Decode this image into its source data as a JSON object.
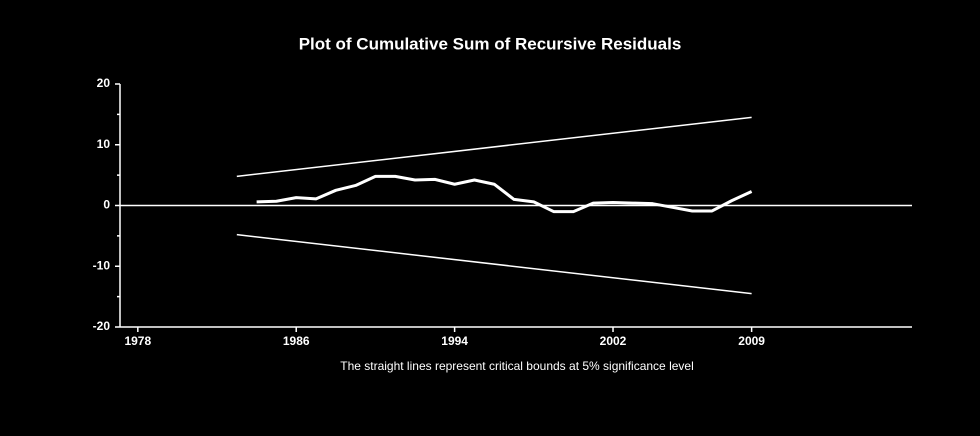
{
  "chart_data": {
    "type": "line",
    "title": "Plot of Cumulative Sum of Recursive Residuals",
    "note": "The straight lines represent critical bounds at 5% significance level",
    "xlim": [
      1977.1,
      2017.1
    ],
    "xticks": [
      1978,
      1986,
      1994,
      2002,
      2009
    ],
    "ylim": [
      -20,
      20
    ],
    "yticks": [
      -20,
      -10,
      0,
      10,
      20
    ],
    "hline": 0,
    "background": "#000000",
    "axis_color": "#ffffff",
    "series": [
      {
        "color": "#ffffff",
        "width": 1.5,
        "x": [
          1983,
          2009
        ],
        "values": [
          4.8,
          14.5
        ]
      },
      {
        "color": "#ffffff",
        "width": 3,
        "x": [
          1984,
          1985,
          1986,
          1987,
          1988,
          1989,
          1990,
          1991,
          1992,
          1993,
          1994,
          1995,
          1996,
          1997,
          1998,
          1999,
          2000,
          2001,
          2002,
          2003,
          2004,
          2005,
          2006,
          2007,
          2008,
          2009
        ],
        "values": [
          0.6,
          0.7,
          1.3,
          1.1,
          2.5,
          3.3,
          4.8,
          4.8,
          4.2,
          4.3,
          3.5,
          4.2,
          3.5,
          1.0,
          0.6,
          -1.0,
          -1.0,
          0.4,
          0.5,
          0.4,
          0.3,
          -0.3,
          -0.9,
          -0.9,
          0.8,
          2.3
        ]
      },
      {
        "color": "#ffffff",
        "width": 1.5,
        "x": [
          1983,
          2009
        ],
        "values": [
          -4.8,
          -14.5
        ]
      }
    ]
  }
}
